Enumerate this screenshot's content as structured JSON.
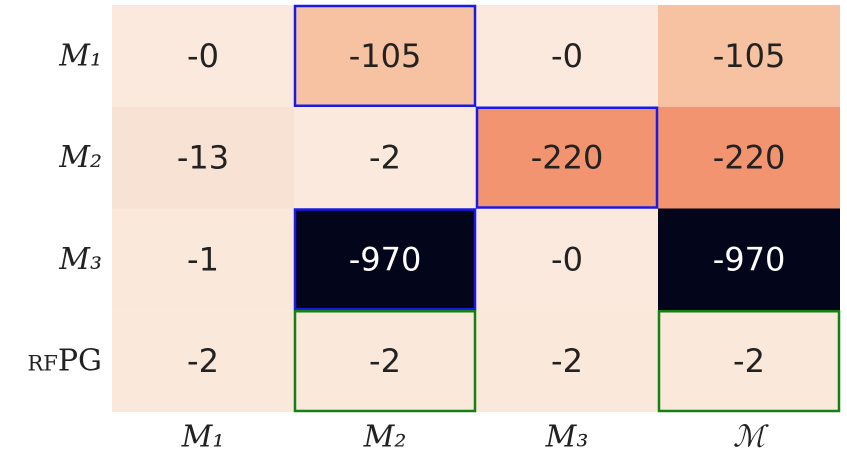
{
  "chart_data": {
    "type": "heatmap",
    "rows": [
      "M₁",
      "M₂",
      "M₃",
      "rfPG"
    ],
    "columns": [
      "M₁",
      "M₂",
      "M₃",
      "ℳ"
    ],
    "values": [
      [
        0,
        -105,
        0,
        -105
      ],
      [
        -13,
        -2,
        -220,
        -220
      ],
      [
        -1,
        -970,
        0,
        -970
      ],
      [
        -2,
        -2,
        -2,
        -2
      ]
    ],
    "value_labels": [
      [
        "-0",
        "-105",
        "-0",
        "-105"
      ],
      [
        "-13",
        "-2",
        "-220",
        "-220"
      ],
      [
        "-1",
        "-970",
        "-0",
        "-970"
      ],
      [
        "-2",
        "-2",
        "-2",
        "-2"
      ]
    ],
    "colors": [
      [
        "#fae9dc",
        "#f6c2a1",
        "#fae9dc",
        "#f6c2a1"
      ],
      [
        "#f8e2d4",
        "#fae9dc",
        "#f39470",
        "#f39470"
      ],
      [
        "#fae8db",
        "#03051a",
        "#fae9dc",
        "#03051a"
      ],
      [
        "#fae8db",
        "#fae8db",
        "#fae8db",
        "#fae8db"
      ]
    ],
    "highlights": [
      {
        "row": 0,
        "col": 1,
        "color": "#1a1ae6"
      },
      {
        "row": 1,
        "col": 2,
        "color": "#1a1ae6"
      },
      {
        "row": 2,
        "col": 1,
        "color": "#1a1ae6"
      },
      {
        "row": 3,
        "col": 1,
        "color": "#138013"
      },
      {
        "row": 3,
        "col": 3,
        "color": "#138013"
      }
    ]
  }
}
